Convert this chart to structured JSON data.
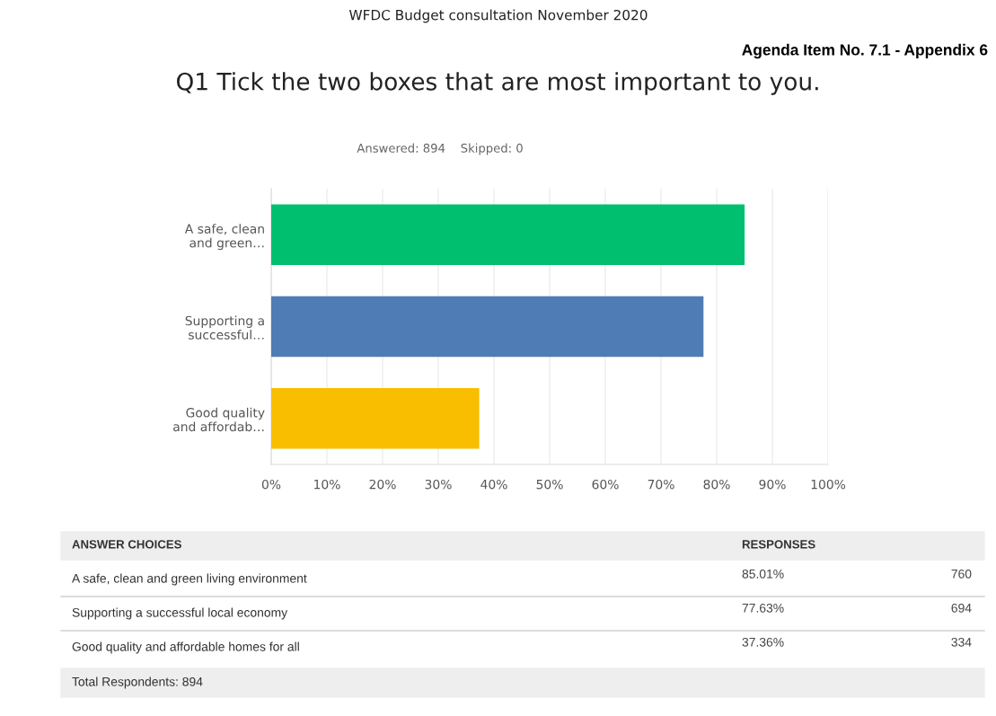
{
  "chart_data": {
    "type": "bar",
    "orientation": "horizontal",
    "title": "Q1 Tick the two boxes that are most important to you.",
    "subtitle": "Answered: 894    Skipped: 0",
    "categories": [
      "A safe, clean\nand green…",
      "Supporting a\nsuccessful…",
      "Good quality\nand affordab…"
    ],
    "values": [
      85.01,
      77.63,
      37.36
    ],
    "colors": [
      "#00bf6f",
      "#507cb6",
      "#f9be00"
    ],
    "xlim": [
      0,
      100
    ],
    "xticks": [
      {
        "value": 0,
        "label": "0%"
      },
      {
        "value": 10,
        "label": "10%"
      },
      {
        "value": 20,
        "label": "20%"
      },
      {
        "value": 30,
        "label": "30%"
      },
      {
        "value": 40,
        "label": "40%"
      },
      {
        "value": 50,
        "label": "50%"
      },
      {
        "value": 60,
        "label": "60%"
      },
      {
        "value": 70,
        "label": "70%"
      },
      {
        "value": 80,
        "label": "80%"
      },
      {
        "value": 90,
        "label": "90%"
      },
      {
        "value": 100,
        "label": "100%"
      }
    ],
    "grid": "x",
    "annotations": [
      "WFDC Budget consultation November 2020",
      "Agenda Item No. 7.1 - Appendix 6",
      "ANSWER CHOICES",
      "RESPONSES",
      "A safe, clean and green living environment",
      "Supporting a successful local economy",
      "Good quality and affordable homes for all",
      "85.01%",
      "77.63%",
      "37.36%",
      "760",
      "694",
      "334",
      "Total Respondents: 894"
    ]
  }
}
